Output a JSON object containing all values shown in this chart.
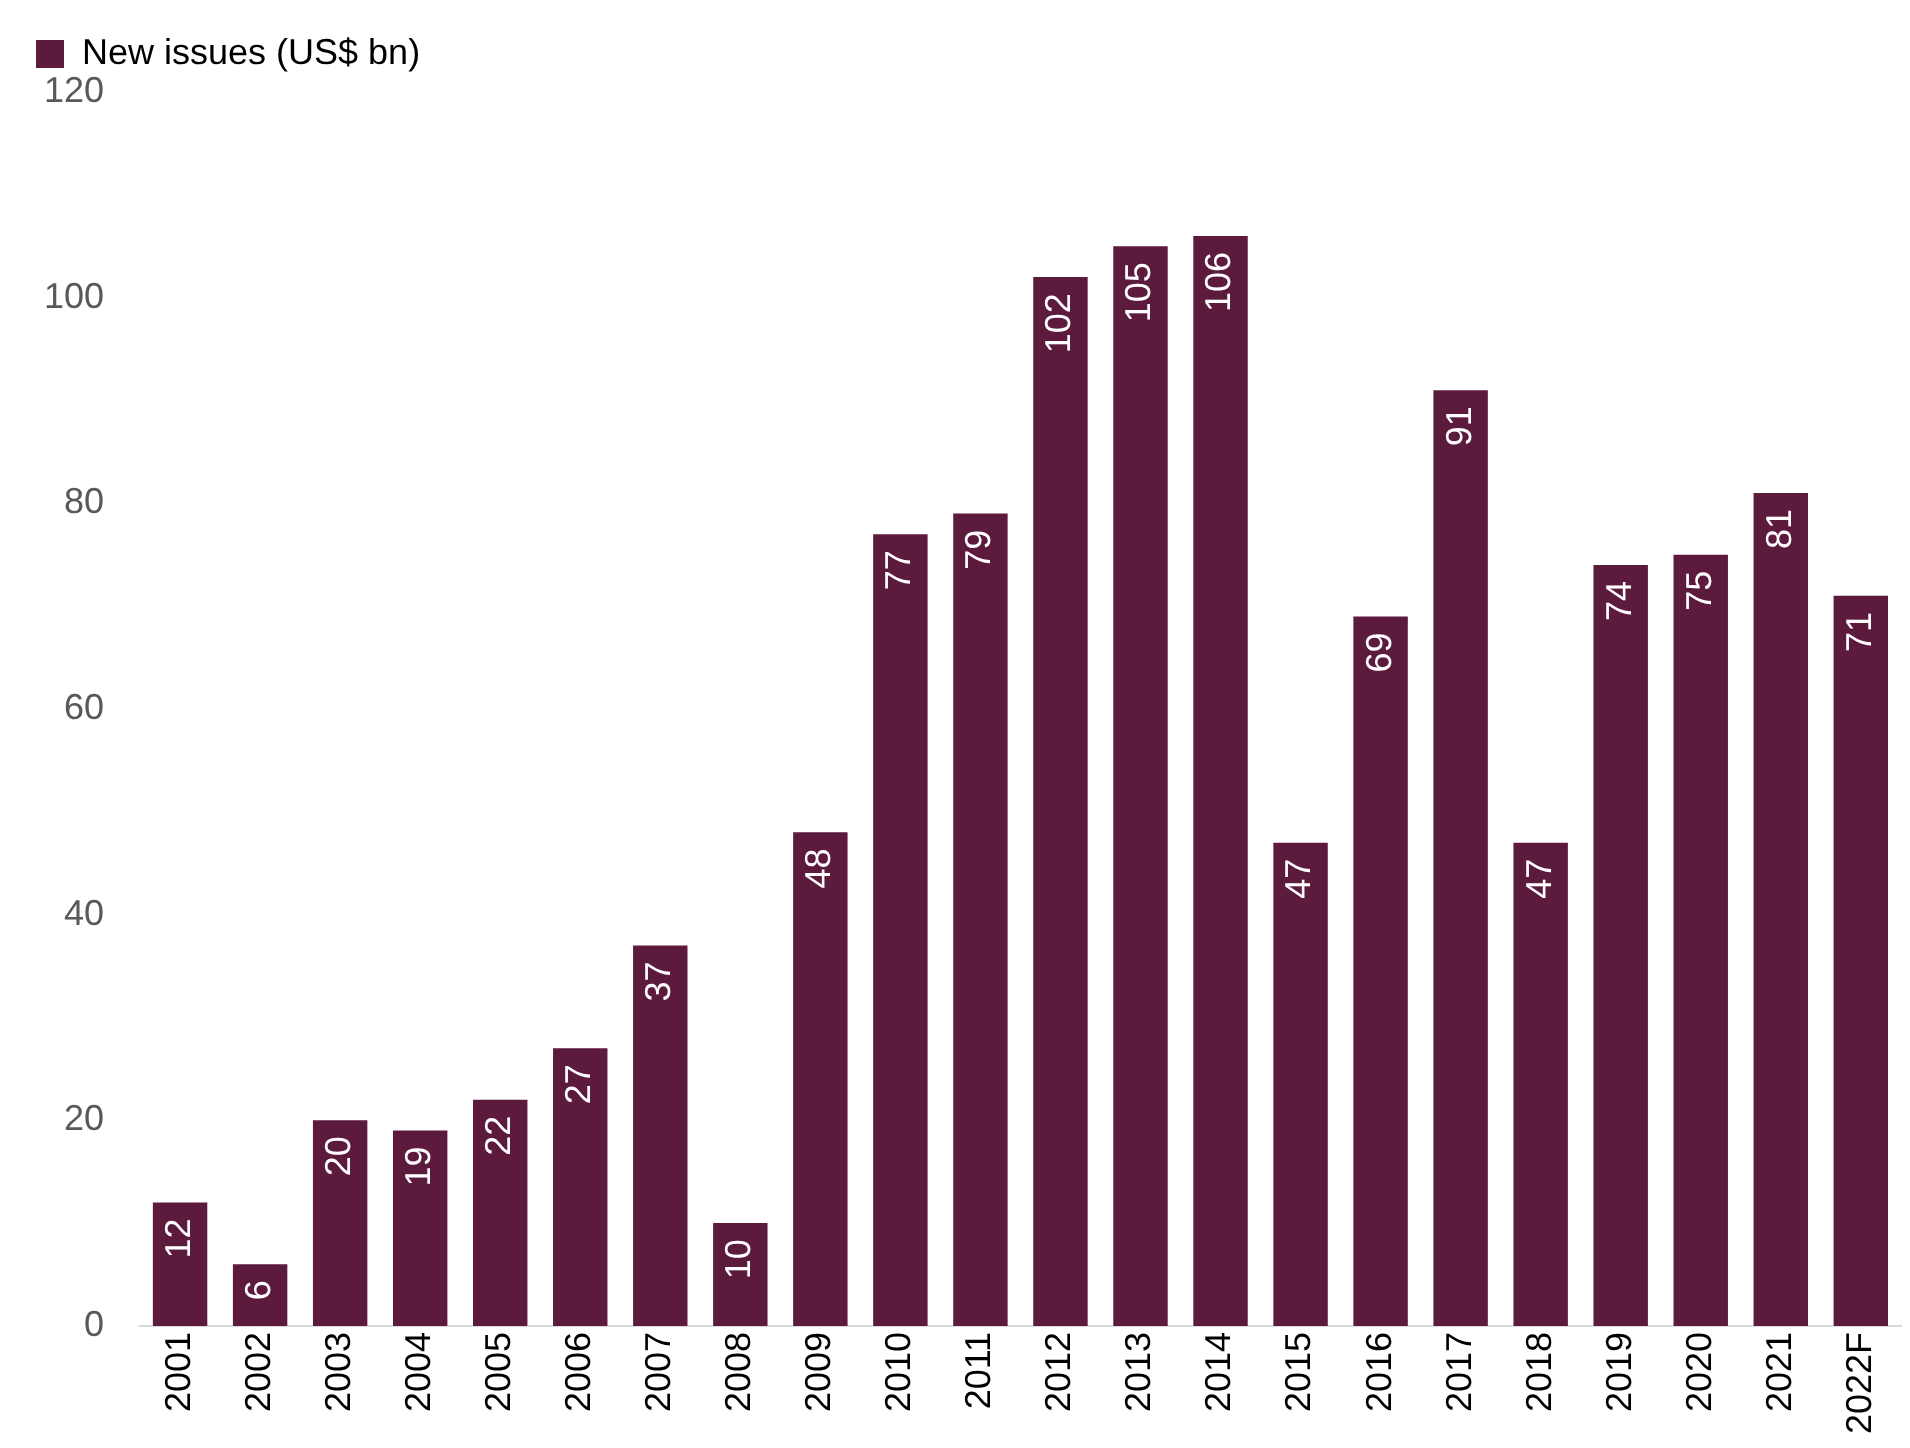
{
  "chart_data": {
    "type": "bar",
    "categories": [
      "2001",
      "2002",
      "2003",
      "2004",
      "2005",
      "2006",
      "2007",
      "2008",
      "2009",
      "2010",
      "2011",
      "2012",
      "2013",
      "2014",
      "2015",
      "2016",
      "2017",
      "2018",
      "2019",
      "2020",
      "2021",
      "2022F"
    ],
    "series": [
      {
        "name": "New issues (US$ bn)",
        "color": "#5c1a3c",
        "values": [
          12,
          6,
          20,
          19,
          22,
          27,
          37,
          10,
          48,
          77,
          79,
          102,
          105,
          106,
          47,
          69,
          91,
          47,
          74,
          75,
          81,
          71
        ]
      }
    ],
    "ylim": [
      0,
      120
    ],
    "yticks": [
      0,
      20,
      40,
      60,
      80,
      100,
      120
    ],
    "grid": false,
    "legend": "top left",
    "data_labels": true
  }
}
